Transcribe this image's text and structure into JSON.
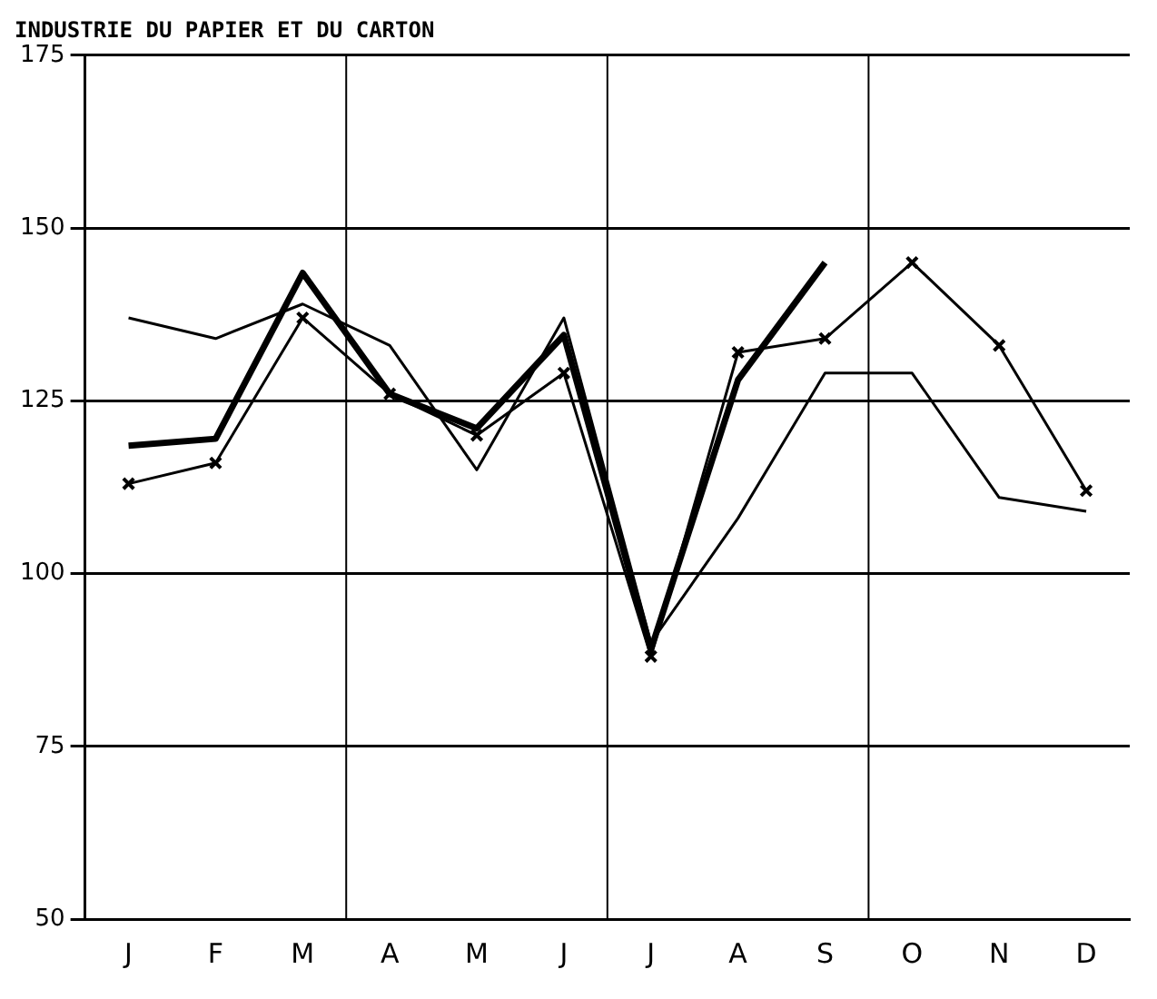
{
  "chart_data": {
    "type": "line",
    "title": "INDUSTRIE DU PAPIER ET DU CARTON",
    "categories": [
      "J",
      "F",
      "M",
      "A",
      "M",
      "J",
      "J",
      "A",
      "S",
      "O",
      "N",
      "D"
    ],
    "series": [
      {
        "color": "#000000",
        "marker": "none",
        "values": [
          137,
          134,
          139,
          133,
          115,
          137,
          90,
          108,
          129,
          129,
          111,
          109
        ]
      },
      {
        "color": "#000000",
        "marker": "cross",
        "values": [
          113,
          116,
          137,
          126,
          120,
          129,
          88,
          132,
          134,
          145,
          133,
          112
        ]
      },
      {
        "color": "#000000",
        "marker": "none",
        "values": [
          118.5,
          119.5,
          143.5,
          126,
          121,
          134.5,
          89,
          128,
          145,
          null,
          null,
          null
        ]
      }
    ],
    "ylim": [
      50,
      175
    ],
    "yticks": [
      50,
      75,
      100,
      125,
      150,
      175
    ],
    "grid": true,
    "legend": false
  }
}
